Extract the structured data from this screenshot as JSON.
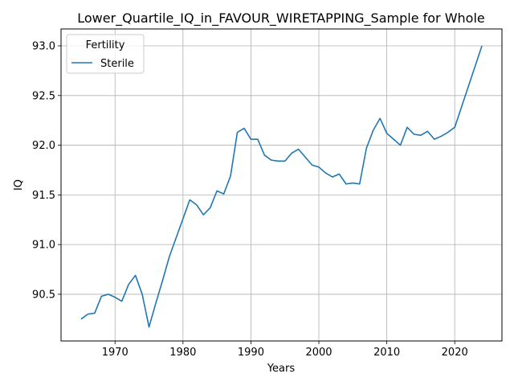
{
  "chart_data": {
    "type": "line",
    "title": "Lower_Quartile_IQ_in_FAVOUR_WIRETAPPING_Sample for Whole",
    "xlabel": "Years",
    "ylabel": "IQ",
    "xlim": [
      1962.05,
      2026.95
    ],
    "ylim": [
      90.03,
      93.17
    ],
    "xticks": [
      1970,
      1980,
      1990,
      2000,
      2010,
      2020
    ],
    "yticks": [
      90.5,
      91.0,
      91.5,
      92.0,
      92.5,
      93.0
    ],
    "xtick_labels": [
      "1970",
      "1980",
      "1990",
      "2000",
      "2010",
      "2020"
    ],
    "ytick_labels": [
      "90.5",
      "91.0",
      "91.5",
      "92.0",
      "92.5",
      "93.0"
    ],
    "grid": true,
    "legend": {
      "title": "Fertility",
      "placement": "top-left"
    },
    "series": [
      {
        "name": "Sterile",
        "color": "#1f77b4",
        "x": [
          1965,
          1966,
          1967,
          1968,
          1969,
          1970,
          1971,
          1972,
          1973,
          1974,
          1975,
          1976,
          1977,
          1978,
          1979,
          1980,
          1981,
          1982,
          1983,
          1984,
          1985,
          1986,
          1987,
          1988,
          1989,
          1990,
          1991,
          1992,
          1993,
          1994,
          1995,
          1996,
          1997,
          1998,
          1999,
          2000,
          2001,
          2002,
          2003,
          2004,
          2005,
          2006,
          2007,
          2008,
          2009,
          2010,
          2011,
          2012,
          2013,
          2014,
          2015,
          2016,
          2017,
          2018,
          2019,
          2020,
          2024
        ],
        "y": [
          90.25,
          90.3,
          90.31,
          90.48,
          90.5,
          90.47,
          90.43,
          90.6,
          90.69,
          90.5,
          90.17,
          90.41,
          90.64,
          90.88,
          91.07,
          91.26,
          91.45,
          91.4,
          91.3,
          91.37,
          91.54,
          91.51,
          91.69,
          92.13,
          92.17,
          92.06,
          92.06,
          91.9,
          91.85,
          91.84,
          91.84,
          91.92,
          91.96,
          91.88,
          91.8,
          91.78,
          91.72,
          91.68,
          91.71,
          91.61,
          91.62,
          91.61,
          91.97,
          92.15,
          92.27,
          92.12,
          92.06,
          92.0,
          92.18,
          92.11,
          92.1,
          92.14,
          92.06,
          92.09,
          92.13,
          92.18,
          93.0
        ]
      }
    ]
  }
}
